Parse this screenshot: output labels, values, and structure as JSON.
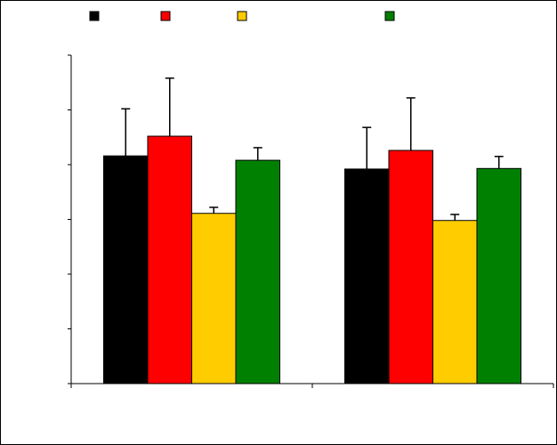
{
  "chart_data": {
    "type": "bar",
    "categories": [
      null,
      null
    ],
    "series": [
      {
        "color": "#000000",
        "values": [
          4.16,
          3.92
        ],
        "errors": [
          0.86,
          0.76
        ]
      },
      {
        "color": "#ff0000",
        "values": [
          4.52,
          4.26
        ],
        "errors": [
          1.06,
          0.96
        ]
      },
      {
        "color": "#ffcc00",
        "values": [
          3.11,
          2.98
        ],
        "errors": [
          0.11,
          0.11
        ]
      },
      {
        "color": "#008000",
        "values": [
          4.08,
          3.93
        ],
        "errors": [
          0.23,
          0.22
        ]
      }
    ],
    "ylim": [
      0,
      6
    ],
    "yticks": [
      0,
      1,
      2,
      3,
      4,
      5,
      6
    ],
    "grid": false
  }
}
